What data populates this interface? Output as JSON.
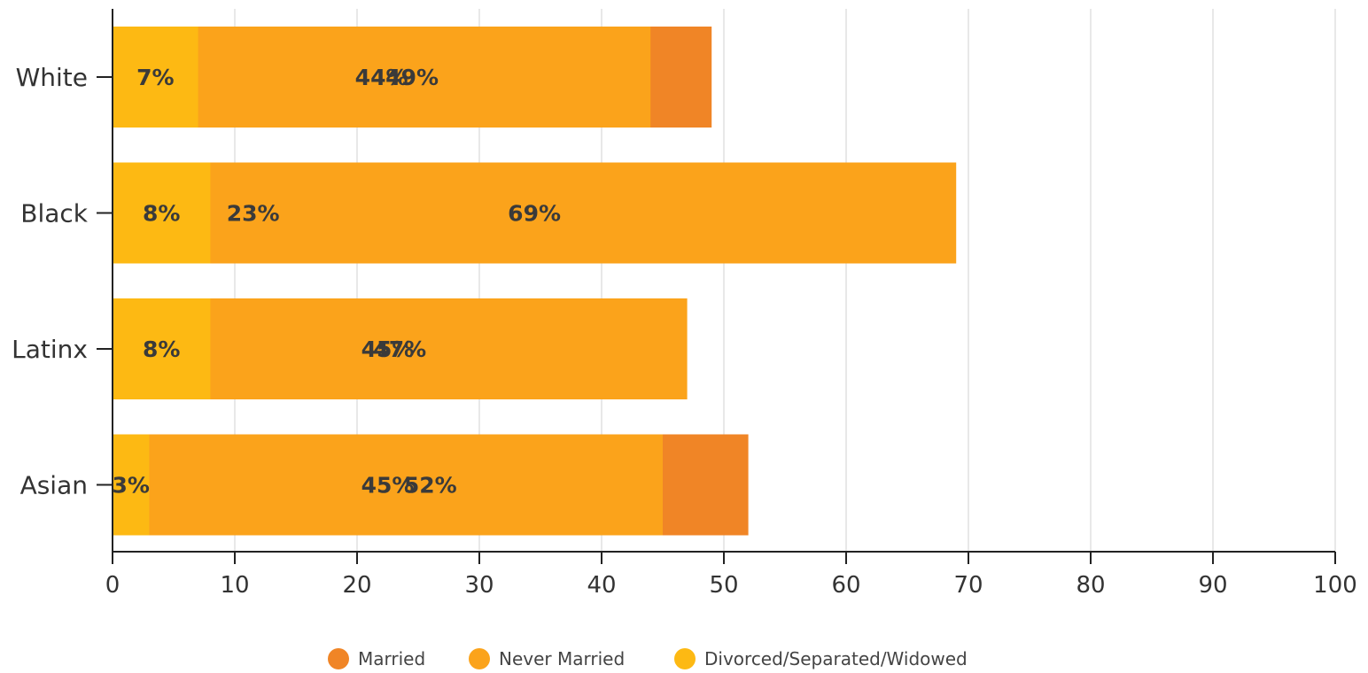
{
  "chart_data": {
    "type": "bar",
    "orientation": "horizontal",
    "stacked": true,
    "categories": [
      "White",
      "Black",
      "Latinx",
      "Asian"
    ],
    "series": [
      {
        "name": "Married",
        "color": "#F08526",
        "values": [
          49,
          23,
          45,
          52
        ],
        "labels": [
          "49%",
          "23%",
          "45%",
          "52%"
        ]
      },
      {
        "name": "Never Married",
        "color": "#FBA31B",
        "values": [
          44,
          69,
          47,
          45
        ],
        "labels": [
          "44%",
          "69%",
          "47%",
          "45%"
        ]
      },
      {
        "name": "Divorced/Separated/Widowed",
        "color": "#FDB913",
        "values": [
          7,
          8,
          8,
          3
        ],
        "labels": [
          "7%",
          "8%",
          "8%",
          "3%"
        ]
      }
    ],
    "xlim": [
      0,
      100
    ],
    "xticks": [
      0,
      10,
      20,
      30,
      40,
      50,
      60,
      70,
      80,
      90,
      100
    ],
    "grid": true,
    "legend": "bottom"
  }
}
